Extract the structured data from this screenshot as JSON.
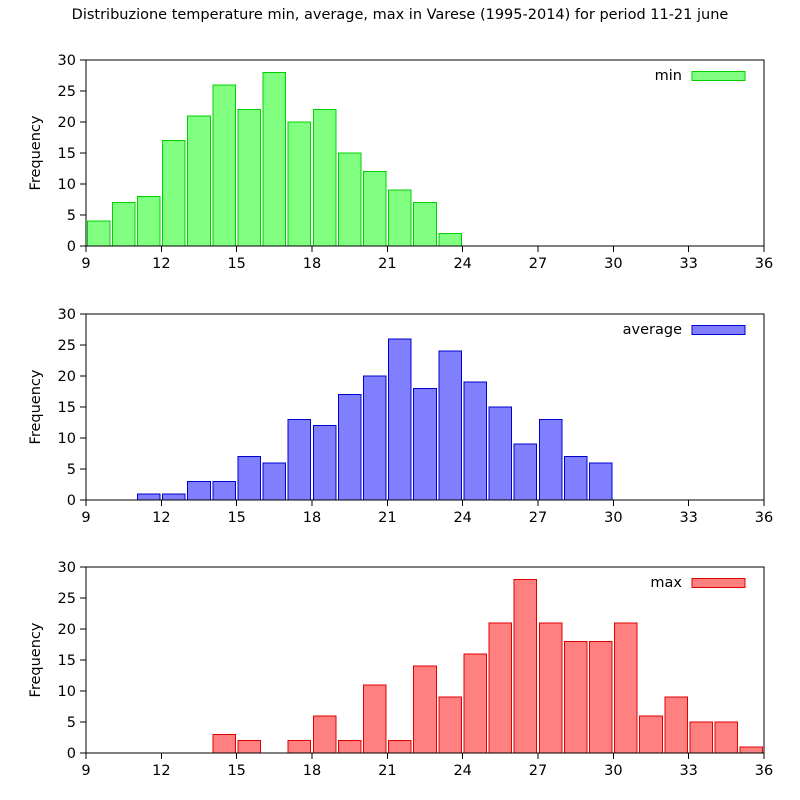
{
  "title": "Distribuzione temperature min, average, max in Varese (1995-2014) for period 11-21 june",
  "ylabel": "Frequency",
  "axis_color": "#000000",
  "background_color": "#ffffff",
  "chart_data": [
    {
      "type": "bar",
      "subtype": "histogram",
      "legend": "min",
      "fill_color": "#80ff80",
      "border_color": "#00d000",
      "bin_start": 9,
      "bin_width": 1,
      "bins": [
        9,
        10,
        11,
        12,
        13,
        14,
        15,
        16,
        17,
        18,
        19,
        20,
        21,
        22,
        23
      ],
      "values": [
        4,
        7,
        8,
        17,
        21,
        26,
        22,
        28,
        20,
        22,
        15,
        12,
        9,
        7,
        2
      ],
      "xlabel": "",
      "ylabel": "Frequency",
      "xlim": [
        9,
        36
      ],
      "ylim": [
        0,
        30
      ],
      "xticks": [
        9,
        12,
        15,
        18,
        21,
        24,
        27,
        30,
        33,
        36
      ],
      "yticks": [
        0,
        5,
        10,
        15,
        20,
        25,
        30
      ],
      "legend_position": "top-right",
      "grid": "off"
    },
    {
      "type": "bar",
      "subtype": "histogram",
      "legend": "average",
      "fill_color": "#8080ff",
      "border_color": "#0000d0",
      "bin_start": 11,
      "bin_width": 1,
      "bins": [
        11,
        12,
        13,
        14,
        15,
        16,
        17,
        18,
        19,
        20,
        21,
        22,
        23,
        24,
        25,
        26,
        27,
        28,
        29
      ],
      "values": [
        1,
        1,
        3,
        3,
        7,
        6,
        13,
        12,
        17,
        20,
        26,
        18,
        24,
        19,
        15,
        9,
        13,
        7,
        6
      ],
      "xlabel": "",
      "ylabel": "Frequency",
      "xlim": [
        9,
        36
      ],
      "ylim": [
        0,
        30
      ],
      "xticks": [
        9,
        12,
        15,
        18,
        21,
        24,
        27,
        30,
        33,
        36
      ],
      "yticks": [
        0,
        5,
        10,
        15,
        20,
        25,
        30
      ],
      "legend_position": "top-right",
      "grid": "off"
    },
    {
      "type": "bar",
      "subtype": "histogram",
      "legend": "max",
      "fill_color": "#ff8080",
      "border_color": "#e00000",
      "bin_start": 14,
      "bin_width": 1,
      "bins": [
        14,
        15,
        16,
        17,
        18,
        19,
        20,
        21,
        22,
        23,
        24,
        25,
        26,
        27,
        28,
        29,
        30,
        31,
        32,
        33,
        34,
        35
      ],
      "values": [
        3,
        2,
        0,
        2,
        6,
        2,
        11,
        2,
        14,
        9,
        16,
        21,
        28,
        21,
        18,
        18,
        21,
        6,
        9,
        5,
        5,
        1
      ],
      "xlabel": "",
      "ylabel": "Frequency",
      "xlim": [
        9,
        36
      ],
      "ylim": [
        0,
        30
      ],
      "xticks": [
        9,
        12,
        15,
        18,
        21,
        24,
        27,
        30,
        33,
        36
      ],
      "yticks": [
        0,
        5,
        10,
        15,
        20,
        25,
        30
      ],
      "legend_position": "top-right",
      "grid": "off"
    }
  ]
}
